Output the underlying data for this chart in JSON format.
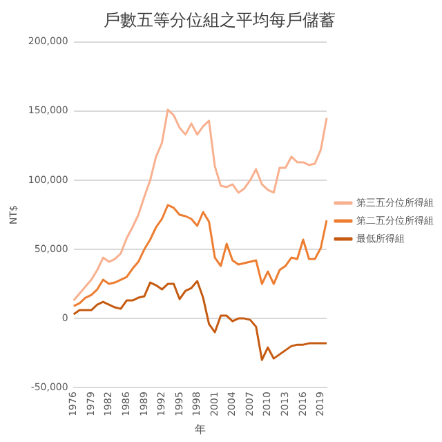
{
  "chart_data": {
    "type": "line",
    "title": "戶數五等分位組之平均每戶儲蓄",
    "xlabel": "年",
    "ylabel": "NT$",
    "categories": [
      "1976",
      null,
      null,
      "1979",
      null,
      null,
      "1982",
      null,
      null,
      "1986",
      null,
      null,
      "1989",
      null,
      null,
      "1992",
      null,
      null,
      "1995",
      null,
      null,
      "1998",
      null,
      null,
      "2001",
      null,
      null,
      "2004",
      null,
      null,
      "2007",
      null,
      null,
      "2010",
      null,
      null,
      "2013",
      null,
      null,
      "2016",
      null,
      null,
      "2019",
      null
    ],
    "ylim": [
      -50000,
      200000
    ],
    "yticks": [
      {
        "value": -50000,
        "label": "-50,000"
      },
      0,
      {
        "value": 50000,
        "label": "50,000"
      },
      {
        "value": 100000,
        "label": "100,000"
      },
      {
        "value": 150000,
        "label": "150,000"
      },
      {
        "value": 200000,
        "label": "200,000"
      }
    ],
    "grid": "y",
    "legend": "right",
    "marker": "none",
    "series": [
      {
        "name": "第三五分位所得組",
        "color": "#f8b08f",
        "values": [
          13000,
          18000,
          23000,
          28000,
          35000,
          44000,
          41000,
          43000,
          47000,
          58000,
          66000,
          75000,
          88000,
          100000,
          117000,
          127000,
          151000,
          147000,
          138000,
          133000,
          141000,
          133000,
          139000,
          143000,
          110000,
          96000,
          95000,
          97000,
          91000,
          94000,
          100000,
          108000,
          97000,
          93000,
          91000,
          109000,
          109000,
          117000,
          113000,
          113000,
          111000,
          112000,
          122000,
          145000
        ]
      },
      {
        "name": "第二五分位所得組",
        "color": "#ed7d31",
        "values": [
          9000,
          11000,
          15000,
          17000,
          21000,
          28000,
          25000,
          26000,
          28000,
          30000,
          36000,
          41000,
          50000,
          57000,
          66000,
          72000,
          82000,
          80000,
          75000,
          74000,
          72000,
          67000,
          77000,
          70000,
          44000,
          38000,
          54000,
          42000,
          39000,
          40000,
          41000,
          42000,
          25000,
          34000,
          25000,
          35000,
          38000,
          44000,
          43000,
          57000,
          43000,
          43000,
          51000,
          71000
        ]
      },
      {
        "name": "最低所得組",
        "color": "#c55a11",
        "values": [
          3000,
          6000,
          6000,
          6000,
          10000,
          12000,
          10000,
          8000,
          7000,
          13000,
          13000,
          15000,
          16000,
          26000,
          24000,
          21000,
          25000,
          25000,
          14000,
          20000,
          22000,
          27000,
          15000,
          -4000,
          -10000,
          2000,
          2000,
          -2000,
          0,
          0,
          -1000,
          -6000,
          -30000,
          -21000,
          -29000,
          -26000,
          -23000,
          -20000,
          -19000,
          -19000,
          -18000,
          -18000,
          -18000,
          -18000
        ]
      }
    ]
  }
}
